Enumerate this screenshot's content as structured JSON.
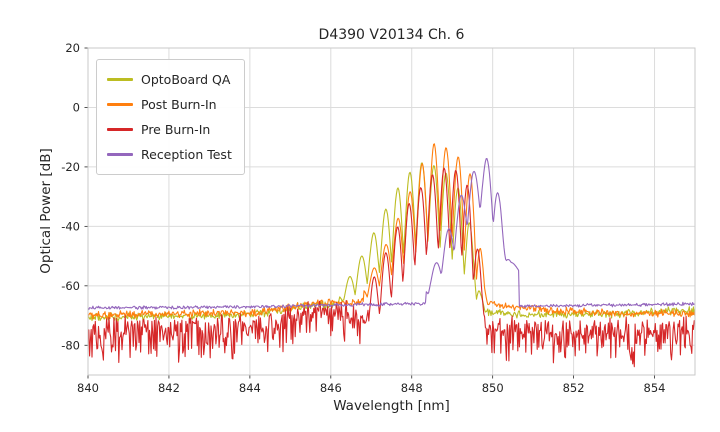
{
  "chart_data": {
    "type": "line",
    "title": "D4390 V20134 Ch. 6",
    "xlabel": "Wavelength [nm]",
    "ylabel": "Optical Power [dB]",
    "xlim": [
      840,
      855
    ],
    "ylim": [
      -90,
      20
    ],
    "xticks": [
      840,
      842,
      844,
      846,
      848,
      850,
      852,
      854
    ],
    "yticks": [
      20,
      0,
      -20,
      -40,
      -60,
      -80
    ],
    "grid": true,
    "legend_position": "upper left",
    "sample_step_nm": 0.02,
    "grid_color": "#dcdcdc",
    "spine_color": "#c9c9c9",
    "series": [
      {
        "name": "OptoBoard QA",
        "color": "#bcbd22",
        "mode_spacing": 0.3,
        "mode_phase": 848.25,
        "peak_exp": 0.55,
        "noise": {
          "up": 1.5,
          "down": 1.8,
          "down_pow": 1
        },
        "floor": [
          [
            840,
            -70.5
          ],
          [
            842,
            -70
          ],
          [
            844,
            -69.5
          ],
          [
            844.8,
            -68
          ],
          [
            845.3,
            -66.8
          ],
          [
            845.8,
            -66.5
          ],
          [
            846.3,
            -65.8
          ],
          [
            847.5,
            -66
          ],
          [
            849.0,
            -66.5
          ],
          [
            849.8,
            -68.5
          ],
          [
            850.5,
            -69.5
          ],
          [
            852,
            -69.5
          ],
          [
            853.5,
            -69
          ],
          [
            855,
            -68
          ]
        ],
        "envelope": [
          [
            846.2,
            -63
          ],
          [
            846.5,
            -56
          ],
          [
            846.8,
            -49
          ],
          [
            847.1,
            -41
          ],
          [
            847.4,
            -33
          ],
          [
            847.7,
            -26
          ],
          [
            848.0,
            -21
          ],
          [
            848.25,
            -18.5
          ],
          [
            848.55,
            -19.5
          ],
          [
            848.85,
            -22
          ],
          [
            849.15,
            -27
          ],
          [
            849.4,
            -36
          ],
          [
            849.55,
            -48
          ],
          [
            849.7,
            -62
          ],
          [
            849.8,
            -68
          ]
        ],
        "valley": [
          [
            846.2,
            -67
          ],
          [
            846.6,
            -63
          ],
          [
            847.0,
            -58
          ],
          [
            847.4,
            -53
          ],
          [
            847.8,
            -49
          ],
          [
            848.1,
            -46
          ],
          [
            848.4,
            -45
          ],
          [
            848.7,
            -47
          ],
          [
            849.0,
            -51
          ],
          [
            849.3,
            -56
          ],
          [
            849.5,
            -62
          ],
          [
            849.7,
            -67
          ],
          [
            849.8,
            -69
          ]
        ]
      },
      {
        "name": "Post Burn-In",
        "color": "#ff7f0e",
        "mode_spacing": 0.3,
        "mode_phase": 848.55,
        "peak_exp": 0.55,
        "noise": {
          "up": 1.4,
          "down": 1.6,
          "down_pow": 1
        },
        "floor": [
          [
            840,
            -69.8
          ],
          [
            842,
            -69.5
          ],
          [
            844,
            -69
          ],
          [
            844.8,
            -67.5
          ],
          [
            845.4,
            -66.2
          ],
          [
            846,
            -65.5
          ],
          [
            846.6,
            -65.2
          ],
          [
            848,
            -66
          ],
          [
            849.9,
            -66.2
          ],
          [
            850.6,
            -67
          ],
          [
            851.5,
            -68.3
          ],
          [
            853,
            -69
          ],
          [
            855,
            -69.3
          ]
        ],
        "envelope": [
          [
            846.8,
            -61
          ],
          [
            847.1,
            -53
          ],
          [
            847.4,
            -45
          ],
          [
            847.7,
            -36
          ],
          [
            848.0,
            -27
          ],
          [
            848.25,
            -19
          ],
          [
            848.55,
            -12
          ],
          [
            848.85,
            -13.5
          ],
          [
            849.1,
            -16
          ],
          [
            849.35,
            -19
          ],
          [
            849.55,
            -26
          ],
          [
            849.7,
            -45
          ],
          [
            849.8,
            -60
          ],
          [
            849.9,
            -66
          ]
        ],
        "valley": [
          [
            846.8,
            -65
          ],
          [
            847.2,
            -60
          ],
          [
            847.6,
            -55
          ],
          [
            848.0,
            -50
          ],
          [
            848.3,
            -46
          ],
          [
            848.6,
            -41
          ],
          [
            848.9,
            -42
          ],
          [
            849.2,
            -46
          ],
          [
            849.45,
            -51
          ],
          [
            849.65,
            -60
          ],
          [
            849.8,
            -65
          ],
          [
            849.9,
            -67
          ]
        ]
      },
      {
        "name": "Pre Burn-In",
        "color": "#d62728",
        "mode_spacing": 0.29,
        "mode_phase": 848.8,
        "peak_exp": 0.55,
        "noise": {
          "up": 6,
          "down": 11,
          "down_pow": 2.2
        },
        "floor": [
          [
            840,
            -76
          ],
          [
            842,
            -76
          ],
          [
            843.5,
            -75.5
          ],
          [
            844.5,
            -73.5
          ],
          [
            845.2,
            -70.5
          ],
          [
            845.8,
            -70
          ],
          [
            846.4,
            -70.5
          ],
          [
            846.9,
            -72
          ],
          [
            848,
            -75
          ],
          [
            849.7,
            -74.5
          ],
          [
            850.3,
            -76
          ],
          [
            852,
            -76.5
          ],
          [
            855,
            -76
          ]
        ],
        "envelope": [
          [
            846.9,
            -62
          ],
          [
            847.2,
            -53
          ],
          [
            847.5,
            -45
          ],
          [
            847.8,
            -35
          ],
          [
            848.1,
            -29
          ],
          [
            848.4,
            -24
          ],
          [
            848.65,
            -21
          ],
          [
            848.9,
            -20
          ],
          [
            849.15,
            -21.5
          ],
          [
            849.35,
            -25
          ],
          [
            849.5,
            -32
          ],
          [
            849.65,
            -48
          ],
          [
            849.75,
            -62
          ],
          [
            849.85,
            -72
          ]
        ],
        "valley": [
          [
            846.9,
            -76
          ],
          [
            847.3,
            -68
          ],
          [
            847.7,
            -61
          ],
          [
            848.0,
            -55
          ],
          [
            848.3,
            -51
          ],
          [
            848.6,
            -48.5
          ],
          [
            848.9,
            -48
          ],
          [
            849.2,
            -50
          ],
          [
            849.4,
            -54
          ],
          [
            849.6,
            -62
          ],
          [
            849.75,
            -70
          ],
          [
            849.85,
            -76
          ]
        ]
      },
      {
        "name": "Reception Test",
        "color": "#9467bd",
        "mode_spacing": 0.32,
        "mode_phase": 849.85,
        "peak_exp": 0.55,
        "noise": {
          "up": 0.6,
          "down": 0.7,
          "down_pow": 1
        },
        "floor": [
          [
            840,
            -67.4
          ],
          [
            842,
            -67.2
          ],
          [
            844,
            -67
          ],
          [
            845,
            -66.8
          ],
          [
            846,
            -66.4
          ],
          [
            847,
            -66.2
          ],
          [
            848.35,
            -66
          ],
          [
            850.7,
            -66.8
          ],
          [
            852,
            -66.6
          ],
          [
            853.5,
            -66.3
          ],
          [
            855,
            -66
          ]
        ],
        "envelope": [
          [
            848.35,
            -60
          ],
          [
            848.6,
            -52
          ],
          [
            848.9,
            -41
          ],
          [
            849.2,
            -30
          ],
          [
            849.5,
            -22
          ],
          [
            849.85,
            -17
          ],
          [
            850.05,
            -19.5
          ],
          [
            850.2,
            -34
          ],
          [
            850.32,
            -47
          ],
          [
            850.45,
            -52
          ],
          [
            850.65,
            -53.5
          ]
        ],
        "valley": [
          [
            848.35,
            -64
          ],
          [
            848.7,
            -57
          ],
          [
            849.0,
            -50
          ],
          [
            849.3,
            -42
          ],
          [
            849.6,
            -35
          ],
          [
            849.9,
            -34
          ],
          [
            850.1,
            -44
          ],
          [
            850.25,
            -50
          ],
          [
            850.4,
            -53
          ],
          [
            850.65,
            -55
          ]
        ]
      }
    ]
  }
}
